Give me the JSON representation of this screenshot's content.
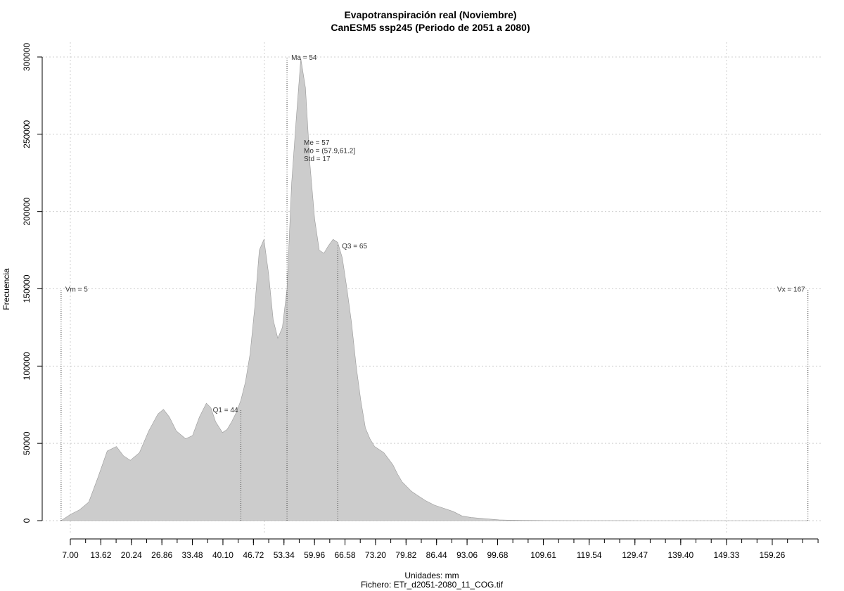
{
  "chart_data": {
    "type": "area",
    "title": "Evapotranspiración real (Noviembre)",
    "subtitle": "CanESM5 ssp245 (Periodo de 2051 a 2080)",
    "xlabel": "Unidades: mm",
    "ylabel": "Frecuencia",
    "footer": "Fichero: ETr_d2051-2080_11_COG.tif",
    "xlim": [
      5,
      173.5
    ],
    "ylim": [
      0,
      300000
    ],
    "x_ticks": [
      7.0,
      13.62,
      20.24,
      26.86,
      33.48,
      40.1,
      46.72,
      53.34,
      59.96,
      66.58,
      73.2,
      79.82,
      86.44,
      93.06,
      99.68,
      109.61,
      119.54,
      129.47,
      139.4,
      149.33,
      159.26
    ],
    "x_tick_labels": [
      "7.00",
      "13.62",
      "20.24",
      "26.86",
      "33.48",
      "40.10",
      "46.72",
      "53.34",
      "59.96",
      "66.58",
      "73.20",
      "79.82",
      "86.44",
      "93.06",
      "99.68",
      "109.61",
      "119.54",
      "129.47",
      "139.40",
      "149.33",
      "159.26"
    ],
    "x_minor_step": 3.31,
    "y_ticks": [
      0,
      50000,
      100000,
      150000,
      200000,
      250000,
      300000
    ],
    "y_tick_labels": [
      "0",
      "50000",
      "100000",
      "150000",
      "200000",
      "250000",
      "300000"
    ],
    "x_grid": [
      7.0,
      49.1,
      149.33
    ],
    "grid": true,
    "series": [
      {
        "x": [
          5,
          7,
          9,
          11,
          13,
          15,
          17,
          18.5,
          20,
          22,
          24,
          26,
          27.2,
          28.5,
          30,
          32,
          33.5,
          35,
          36.5,
          37.5,
          38.5,
          40,
          41,
          42,
          43,
          44,
          45,
          46,
          47,
          48,
          49,
          50,
          51,
          52,
          53,
          54,
          55,
          56,
          57,
          58,
          59,
          60,
          61,
          62,
          63,
          64,
          65,
          66,
          67,
          68,
          69,
          70,
          71,
          72,
          73,
          74,
          75,
          76,
          77,
          78,
          79,
          80,
          81,
          82,
          84,
          86,
          88,
          90,
          92,
          94,
          96,
          98,
          100,
          102,
          105,
          110,
          115,
          120,
          130,
          140,
          150,
          160,
          167
        ],
        "y": [
          0,
          4000,
          7000,
          12000,
          28000,
          45000,
          48000,
          42000,
          39000,
          44000,
          58000,
          69000,
          72000,
          67000,
          58000,
          53000,
          55000,
          67000,
          76000,
          73000,
          64000,
          57000,
          59000,
          64000,
          70000,
          78000,
          90000,
          108000,
          138000,
          175000,
          182000,
          160000,
          130000,
          118000,
          125000,
          150000,
          218000,
          260000,
          299000,
          280000,
          230000,
          195000,
          175000,
          173000,
          178000,
          182000,
          180000,
          170000,
          150000,
          128000,
          100000,
          78000,
          60000,
          53000,
          48000,
          46000,
          44000,
          40000,
          36000,
          30000,
          25000,
          22000,
          19000,
          17000,
          13000,
          10000,
          8000,
          6000,
          3000,
          2000,
          1500,
          1000,
          500,
          300,
          200,
          100,
          50,
          30,
          20,
          10,
          5,
          0,
          0
        ]
      }
    ],
    "markers": [
      {
        "label": "Vm = 5",
        "x": 5,
        "y_top": 150000,
        "label_side": "right"
      },
      {
        "label": "Q1 = 44",
        "x": 44,
        "y_top": 72000,
        "label_side": "left"
      },
      {
        "label": "Ma = 54",
        "x": 54,
        "y_top": 300000,
        "label_side": "right"
      },
      {
        "label": "Q3 = 65",
        "x": 65,
        "y_top": 178000,
        "label_side": "right"
      },
      {
        "label": "Vx = 167",
        "x": 167,
        "y_top": 150000,
        "label_side": "left"
      }
    ],
    "stats_box": [
      "Me = 57",
      "Mo = (57.9,61.2]",
      "Std = 17"
    ]
  }
}
